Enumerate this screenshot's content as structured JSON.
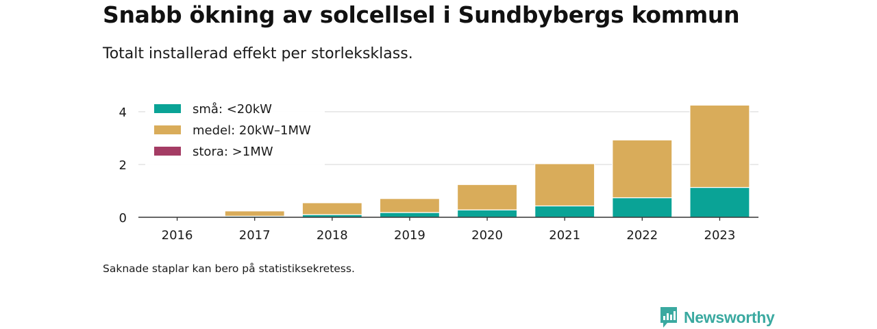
{
  "header": {
    "title": "Snabb ökning av solcellsel i Sundbybergs kommun",
    "subtitle": "Totalt installerad effekt per storleksklass."
  },
  "footer": {
    "note": "Saknade staplar kan bero på statistiksekretess.",
    "brand": "Newsworthy",
    "brand_color": "#3aa9a0"
  },
  "chart_data": {
    "type": "bar",
    "stacked": true,
    "categories": [
      "2016",
      "2017",
      "2018",
      "2019",
      "2020",
      "2021",
      "2022",
      "2023"
    ],
    "series": [
      {
        "name": "små: <20kW",
        "color": "#0aa396",
        "values": [
          0.01,
          0.04,
          0.1,
          0.18,
          0.28,
          0.43,
          0.74,
          1.13
        ]
      },
      {
        "name": "medel: 20kW–1MW",
        "color": "#d9ac5a",
        "values": [
          0.0,
          0.2,
          0.45,
          0.53,
          0.96,
          1.6,
          2.19,
          3.12
        ]
      },
      {
        "name": "stora: >1MW",
        "color": "#a43c64",
        "values": [
          0,
          0,
          0,
          0,
          0,
          0,
          0,
          0
        ]
      }
    ],
    "yticks": [
      0,
      2,
      4
    ],
    "ylim": [
      0,
      4.4
    ],
    "xlabel": "",
    "ylabel": "",
    "grid": true,
    "legend": "top-left"
  }
}
